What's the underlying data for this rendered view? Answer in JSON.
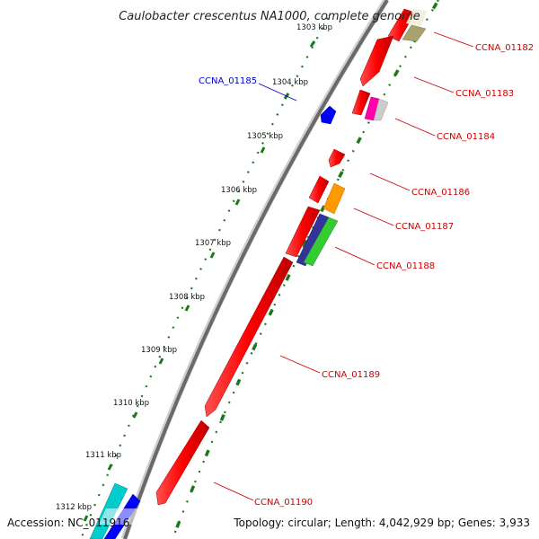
{
  "title": "Caulobacter crescentus NA1000, complete genome",
  "accession": "Accession: NC_011916",
  "summary": "Topology: circular; Length: 4,042,929 bp; Genes: 3,933",
  "ticks": [
    "1303 kbp",
    "1304 kbp",
    "1305 kbp",
    "1306 kbp",
    "1307 kbp",
    "1308 kbp",
    "1309 kbp",
    "1310 kbp",
    "1311 kbp",
    "1312 kbp"
  ],
  "genes": [
    {
      "label": "CCNA_01182",
      "color": "#cc0000"
    },
    {
      "label": "CCNA_01183",
      "color": "#cc0000"
    },
    {
      "label": "CCNA_01184",
      "color": "#cc0000"
    },
    {
      "label": "CCNA_01185",
      "color": "#0000cc"
    },
    {
      "label": "CCNA_01186",
      "color": "#cc0000"
    },
    {
      "label": "CCNA_01187",
      "color": "#cc0000"
    },
    {
      "label": "CCNA_01188",
      "color": "#cc0000"
    },
    {
      "label": "CCNA_01189",
      "color": "#cc0000"
    },
    {
      "label": "CCNA_01190",
      "color": "#cc0000"
    }
  ],
  "colors": {
    "backbone": "#8c8c8c",
    "gc_dots": "#1a7a1a",
    "gene": "#ff0000",
    "orange": "#ff9900",
    "magenta": "#ff00aa",
    "green": "#33cc33",
    "navy": "#333399",
    "olive": "#aaa070",
    "cyan": "#00cccc",
    "blue": "#0000ff"
  }
}
